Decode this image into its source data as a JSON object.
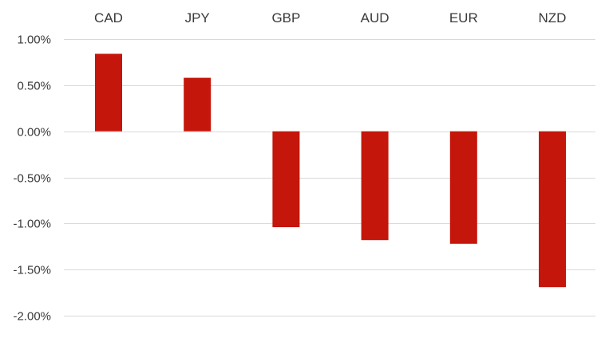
{
  "chart_data": {
    "type": "bar",
    "title": "",
    "xlabel": "",
    "ylabel": "",
    "categories": [
      "CAD",
      "JPY",
      "GBP",
      "AUD",
      "EUR",
      "NZD"
    ],
    "values": [
      0.84,
      0.58,
      -1.04,
      -1.18,
      -1.22,
      -1.69
    ],
    "unit": "%",
    "ylim": [
      -2.0,
      1.0
    ],
    "yticks": [
      1.0,
      0.5,
      0.0,
      -0.5,
      -1.0,
      -1.5,
      -2.0
    ],
    "ytick_labels": [
      "1.00%",
      "0.50%",
      "0.00%",
      "-0.50%",
      "-1.00%",
      "-1.50%",
      "-2.00%"
    ],
    "category_axis_position": "top",
    "grid": true,
    "legend": "none",
    "bar_color": "#c4160a",
    "grid_color": "#d9d9d9"
  }
}
